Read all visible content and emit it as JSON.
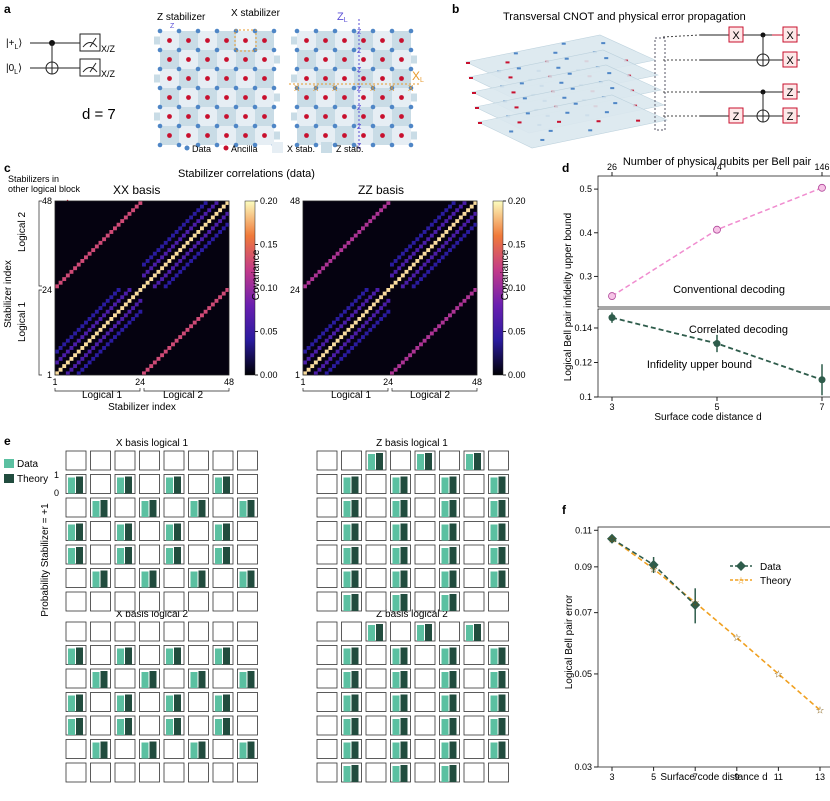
{
  "panels": {
    "a": {
      "label": "a",
      "circuit": {
        "q1": "|+",
        "q2": "|0",
        "sub": "L",
        "meas": "X/Z"
      },
      "distance": "d = 7",
      "z_stabilizer": "Z stabilizer",
      "x_stabilizer": "X stabilizer",
      "z_logical": "Z",
      "z_logical_sub": "L",
      "x_logical": "X",
      "x_logical_sub": "L",
      "z_letter": "Z",
      "x_letter": "X",
      "legend": {
        "data": "Data",
        "ancilla": "Ancilla",
        "xstab": "X stab.",
        "zstab": "Z stab."
      }
    },
    "b": {
      "label": "b",
      "title": "Transversal CNOT and physical error propagation",
      "gates": {
        "x": "X",
        "z": "Z"
      }
    },
    "c": {
      "label": "c",
      "title": "Stabilizer correlations (data)",
      "annotation": [
        "Stabilizers in",
        "other logical block"
      ],
      "xx_title": "XX basis",
      "zz_title": "ZZ basis",
      "ylabel": "Stabilizer index",
      "xlabel": "Stabilizer index",
      "colorbar_label": "Covariance",
      "logical1": "Logical 1",
      "logical2": "Logical 2"
    },
    "d": {
      "label": "d",
      "top_axis_label": "Number of physical qubits per Bell pair",
      "ylabel": "Logical Bell pair infidelity upper bound",
      "xlabel": "Surface code distance d",
      "upper_text": "Conventional decoding",
      "lower_text1": "Correlated decoding",
      "lower_text2": "Infidelity upper bound"
    },
    "e": {
      "label": "e",
      "legend": {
        "data": "Data",
        "theory": "Theory"
      },
      "ylabel": "Probability Stabilizer = +1",
      "tick_top": "1",
      "tick_bottom": "0",
      "titles": [
        "X basis logical 1",
        "Z basis logical 1",
        "X basis logical 2",
        "Z basis logical 2"
      ]
    },
    "f": {
      "label": "f",
      "ylabel": "Logical Bell pair error",
      "xlabel": "Surface code distance d",
      "legend": {
        "data": "Data",
        "theory": "Theory"
      }
    }
  },
  "colors": {
    "data_qubit": "#4f86c6",
    "ancilla": "#c8102e",
    "x_stab": "#e6eef4",
    "z_stab": "#c9dce6",
    "z_logical": "#5b4fd6",
    "x_logical": "#e69a2e",
    "conventional": "#f08ccf",
    "correlated": "#2e5c4b",
    "theory": "#f0a020",
    "e_data": "#5bc0a1",
    "e_theory": "#214c3e"
  },
  "chart_data": [
    {
      "type": "heatmap",
      "title": "XX basis",
      "xlabel": "Stabilizer index",
      "ylabel": "Stabilizer index",
      "x_ticks": [
        1,
        24,
        48
      ],
      "y_ticks": [
        1,
        24,
        48
      ],
      "colorbar": {
        "label": "Covariance",
        "ticks": [
          0.0,
          0.05,
          0.1,
          0.15,
          0.2
        ],
        "tick_labels": [
          "0.00",
          "0.05",
          "0.10",
          "0.15",
          "0.20"
        ]
      }
    },
    {
      "type": "heatmap",
      "title": "ZZ basis",
      "x_ticks": [
        1,
        24,
        48
      ],
      "y_ticks": [
        1,
        24,
        48
      ],
      "colorbar": {
        "label": "Covariance",
        "ticks": [
          0.0,
          0.05,
          0.1,
          0.15,
          0.2
        ],
        "tick_labels": [
          "0.00",
          "0.05",
          "0.10",
          "0.15",
          "0.20"
        ]
      }
    },
    {
      "type": "line",
      "name": "conventional",
      "x": [
        3,
        5,
        7
      ],
      "top_x_ticks": [
        26,
        74,
        146
      ],
      "values": [
        0.255,
        0.407,
        0.503
      ],
      "ylim": [
        0.23,
        0.53
      ],
      "y_ticks": [
        0.3,
        0.4,
        0.5
      ],
      "y_tick_labels": [
        "0.3",
        "0.4",
        "0.5"
      ]
    },
    {
      "type": "line",
      "name": "correlated",
      "x": [
        3,
        5,
        7
      ],
      "values": [
        0.146,
        0.131,
        0.11
      ],
      "errors": [
        0.003,
        0.005,
        0.009
      ],
      "ylim": [
        0.1,
        0.151
      ],
      "y_ticks": [
        0.1,
        0.12,
        0.14
      ],
      "y_tick_labels": [
        "0.1",
        "0.12",
        "0.14"
      ],
      "x_ticks": [
        3,
        5,
        7
      ]
    },
    {
      "type": "line",
      "log_y": true,
      "x_ticks": [
        3,
        5,
        7,
        9,
        11,
        13
      ],
      "y_ticks": [
        0.03,
        0.05,
        0.07,
        0.09,
        0.11
      ],
      "y_tick_labels": [
        "0.03",
        "0.05",
        "0.07",
        "0.09",
        "0.11"
      ],
      "ylim": [
        0.03,
        0.112
      ],
      "series": [
        {
          "name": "Data",
          "x": [
            3,
            5,
            7
          ],
          "values": [
            0.105,
            0.091,
            0.073
          ],
          "errors": [
            0.002,
            0.004,
            0.007
          ]
        },
        {
          "name": "Theory",
          "x": [
            3,
            5,
            7,
            9,
            11,
            13
          ],
          "values": [
            0.105,
            0.089,
            0.074,
            0.061,
            0.05,
            0.041
          ]
        }
      ]
    },
    {
      "type": "bar",
      "grids": [
        {
          "title": "X basis logical 1",
          "active": [
            [
              0,
              0,
              0,
              0,
              0,
              0,
              0,
              0
            ],
            [
              1,
              0,
              1,
              0,
              1,
              0,
              1,
              0
            ],
            [
              0,
              1,
              0,
              1,
              0,
              1,
              0,
              1
            ],
            [
              1,
              0,
              1,
              0,
              1,
              0,
              1,
              0
            ],
            [
              1,
              0,
              1,
              0,
              1,
              0,
              1,
              0
            ],
            [
              0,
              1,
              0,
              1,
              0,
              1,
              0,
              1
            ],
            [
              0,
              0,
              0,
              0,
              0,
              0,
              0,
              0
            ]
          ]
        },
        {
          "title": "Z basis logical 1",
          "active": [
            [
              0,
              0,
              1,
              0,
              1,
              0,
              1,
              0
            ],
            [
              0,
              1,
              0,
              1,
              0,
              1,
              0,
              1
            ],
            [
              0,
              1,
              0,
              1,
              0,
              1,
              0,
              1
            ],
            [
              0,
              1,
              0,
              1,
              0,
              1,
              0,
              1
            ],
            [
              0,
              1,
              0,
              1,
              0,
              1,
              0,
              1
            ],
            [
              0,
              1,
              0,
              1,
              0,
              1,
              0,
              1
            ],
            [
              0,
              1,
              0,
              1,
              0,
              1,
              0,
              0
            ]
          ]
        },
        {
          "title": "X basis logical 2",
          "active": [
            [
              0,
              0,
              0,
              0,
              0,
              0,
              0,
              0
            ],
            [
              1,
              0,
              1,
              0,
              1,
              0,
              1,
              0
            ],
            [
              0,
              1,
              0,
              1,
              0,
              1,
              0,
              1
            ],
            [
              1,
              0,
              1,
              0,
              1,
              0,
              1,
              0
            ],
            [
              1,
              0,
              1,
              0,
              1,
              0,
              1,
              0
            ],
            [
              0,
              1,
              0,
              1,
              0,
              1,
              0,
              1
            ],
            [
              0,
              0,
              0,
              0,
              0,
              0,
              0,
              0
            ]
          ]
        },
        {
          "title": "Z basis logical 2",
          "active": [
            [
              0,
              0,
              1,
              0,
              1,
              0,
              1,
              0
            ],
            [
              0,
              1,
              0,
              1,
              0,
              1,
              0,
              1
            ],
            [
              0,
              1,
              0,
              1,
              0,
              1,
              0,
              1
            ],
            [
              0,
              1,
              0,
              1,
              0,
              1,
              0,
              1
            ],
            [
              0,
              1,
              0,
              1,
              0,
              1,
              0,
              1
            ],
            [
              0,
              1,
              0,
              1,
              0,
              1,
              0,
              1
            ],
            [
              0,
              1,
              0,
              1,
              0,
              1,
              0,
              0
            ]
          ]
        }
      ]
    }
  ]
}
